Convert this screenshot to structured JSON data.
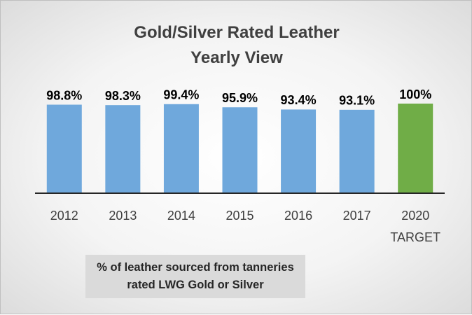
{
  "chart_data": {
    "type": "bar",
    "title": "Gold/Silver Rated Leather Yearly View",
    "categories": [
      "2012",
      "2013",
      "2014",
      "2015",
      "2016",
      "2017",
      "2020 TARGET"
    ],
    "values": [
      98.8,
      98.3,
      99.4,
      95.9,
      93.4,
      93.1,
      100
    ],
    "value_labels": [
      "98.8%",
      "98.3%",
      "99.4%",
      "95.9%",
      "93.4%",
      "93.1%",
      "100%"
    ],
    "colors": [
      "#6fa8dc",
      "#6fa8dc",
      "#6fa8dc",
      "#6fa8dc",
      "#6fa8dc",
      "#6fa8dc",
      "#70ad47"
    ],
    "ylim": [
      0,
      100
    ],
    "annotation": "% of leather sourced from tanneries rated LWG Gold or Silver"
  }
}
